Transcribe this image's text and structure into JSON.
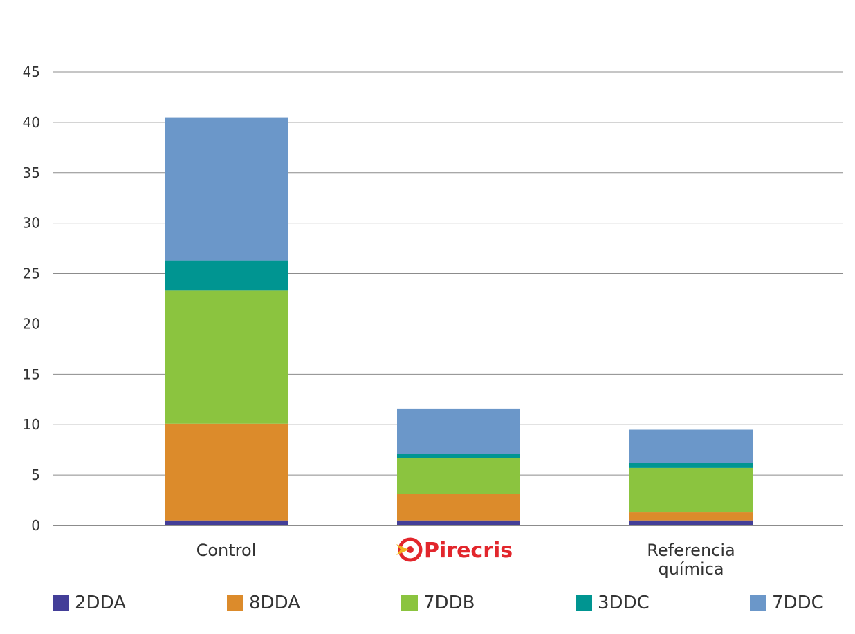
{
  "chart_data": {
    "type": "bar",
    "stacked": true,
    "categories": [
      "Control",
      "Pirecris",
      "Referencia química"
    ],
    "category_lines": [
      [
        "Control"
      ],
      [
        "Pirecris"
      ],
      [
        "Referencia",
        "química"
      ]
    ],
    "series": [
      {
        "name": "2DDA",
        "color": "#433e98",
        "values": [
          0.5,
          0.5,
          0.5
        ]
      },
      {
        "name": "8DDA",
        "color": "#dc8b2b",
        "values": [
          9.6,
          2.6,
          0.8
        ]
      },
      {
        "name": "7DDB",
        "color": "#8bc43f",
        "values": [
          13.2,
          3.6,
          4.4
        ]
      },
      {
        "name": "3DDC",
        "color": "#009591",
        "values": [
          3.0,
          0.4,
          0.5
        ]
      },
      {
        "name": "7DDC",
        "color": "#6b97c9",
        "values": [
          14.2,
          4.5,
          3.3
        ]
      }
    ],
    "yticks": [
      0,
      5,
      10,
      15,
      20,
      25,
      30,
      35,
      40,
      45
    ],
    "ylim": [
      0,
      45
    ],
    "grid": true,
    "legend_position": "bottom",
    "brand_logo_category": "Pirecris",
    "brand_color": "#e2262c"
  }
}
